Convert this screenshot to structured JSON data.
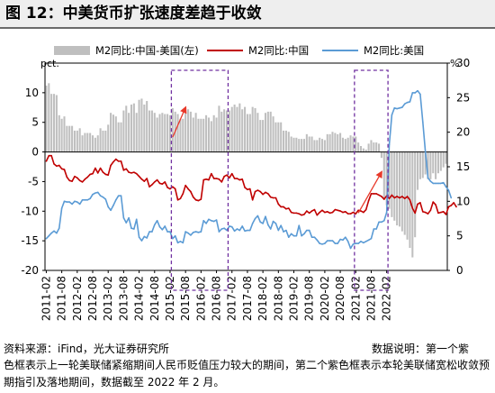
{
  "header": {
    "title": "图 12：中美货币扩张速度差趋于收敛"
  },
  "footer": {
    "source": "资料来源：iFind，光大证券研究所",
    "data_note": "数据说明：第一个紫",
    "footnote": "色框表示上一轮美联储紧缩期间人民币贬值压力较大的期间，第二个紫色框表示本轮美联储宽松收敛预期指引及落地期间，数据截至 2022 年 2 月。"
  },
  "colors": {
    "bar": "#bfbfbf",
    "china_line": "#c00000",
    "us_line": "#5b9bd5",
    "box": "#7030a0",
    "arrow": "#e8392a"
  },
  "chart_data": {
    "type": "bar",
    "title": "图 12：中美货币扩张速度差趋于收敛",
    "left_axis": {
      "unit_label": "pct.",
      "range": [
        -20,
        15
      ],
      "ticks": [
        -20,
        -15,
        -10,
        -5,
        0,
        5,
        10
      ]
    },
    "right_axis": {
      "unit_label": "%",
      "range": [
        0,
        30
      ],
      "ticks": [
        0,
        5,
        10,
        15,
        20,
        25,
        30
      ]
    },
    "x_tick_labels": [
      "2011-02",
      "2011-08",
      "2012-02",
      "2012-08",
      "2013-02",
      "2013-08",
      "2014-02",
      "2014-08",
      "2015-02",
      "2015-08",
      "2016-02",
      "2016-08",
      "2017-02",
      "2017-08",
      "2018-02",
      "2018-08",
      "2019-02",
      "2019-08",
      "2020-02",
      "2020-08",
      "2021-02",
      "2021-08",
      "2022-02"
    ],
    "legend": [
      "M2同比:中国-美国(左)",
      "M2同比:中国",
      "M2同比:美国"
    ],
    "legend_position": "top",
    "series": [
      {
        "name": "M2同比:中国-美国(左)",
        "type": "bar",
        "axis": "left",
        "values": [
          11.2,
          11.6,
          9.8,
          9.8,
          9.6,
          6.2,
          5.6,
          6.0,
          4.4,
          4.4,
          4.4,
          3.6,
          3.6,
          4.0,
          2.8,
          3.2,
          3.2,
          3.2,
          2.8,
          2.4,
          2.8,
          4.0,
          3.6,
          3.6,
          4.6,
          6.6,
          6.3,
          6.0,
          5.0,
          5.0,
          7.0,
          7.8,
          6.6,
          8.0,
          8.2,
          6.6,
          8.8,
          9.0,
          8.0,
          8.6,
          7.0,
          7.0,
          6.6,
          5.8,
          6.4,
          6.6,
          6.4,
          6.4,
          6.2,
          7.4,
          6.8,
          6.4,
          5.6,
          5.6,
          6.6,
          7.2,
          6.8,
          5.8,
          6.6,
          5.6,
          5.6,
          5.6,
          6.2,
          5.8,
          5.2,
          6.2,
          5.8,
          7.8,
          6.8,
          7.2,
          7.0,
          7.0,
          7.6,
          8.0,
          7.6,
          8.2,
          7.2,
          7.6,
          6.4,
          6.4,
          7.6,
          7.4,
          6.6,
          5.4,
          5.4,
          6.6,
          6.8,
          6.8,
          6.0,
          5.0,
          5.0,
          5.0,
          3.6,
          3.6,
          3.4,
          2.6,
          2.4,
          2.4,
          2.2,
          2.2,
          2.2,
          3.0,
          2.6,
          2.6,
          2.0,
          2.0,
          2.4,
          2.2,
          2.0,
          3.0,
          3.0,
          3.4,
          3.2,
          3.0,
          3.2,
          2.4,
          2.2,
          2.4,
          2.8,
          2.6,
          2.6,
          1.6,
          1.0,
          0.6,
          0.4,
          1.4,
          2.0,
          1.6,
          1.6,
          1.4,
          -1.0,
          -8.0,
          -9.0,
          -9.6,
          -11.0,
          -11.6,
          -12.4,
          -12.6,
          -13.4,
          -14.0,
          -14.8,
          -16.2,
          -17.8,
          -14.4,
          -6.4,
          -4.6,
          -4.4,
          -3.8,
          -4.6,
          -4.6,
          -3.6,
          -4.6,
          -3.6,
          -3.2,
          -2.6,
          -2.0
        ]
      },
      {
        "name": "M2同比:中国",
        "type": "line",
        "axis": "right",
        "values": [
          15.8,
          16.6,
          16.6,
          15.4,
          15.1,
          15.2,
          14.7,
          14.6,
          13.5,
          13.0,
          12.9,
          13.6,
          13.4,
          13.0,
          12.8,
          13.2,
          13.5,
          13.9,
          14.0,
          14.8,
          14.1,
          14.8,
          14.2,
          13.9,
          13.8,
          15.2,
          15.7,
          16.1,
          15.8,
          15.8,
          14.5,
          14.7,
          14.2,
          14.1,
          14.2,
          14.0,
          13.6,
          13.2,
          12.9,
          13.3,
          12.1,
          12.4,
          12.8,
          13.1,
          12.6,
          12.5,
          12.8,
          12.0,
          11.8,
          12.1,
          11.8,
          10.2,
          10.4,
          11.1,
          12.3,
          11.8,
          11.4,
          10.6,
          10.2,
          10.1,
          10.3,
          13.1,
          13.2,
          13.1,
          14.0,
          13.3,
          13.3,
          13.2,
          12.8,
          13.6,
          13.8,
          13.4,
          14.0,
          13.3,
          13.3,
          13.1,
          13.2,
          12.0,
          11.7,
          11.8,
          10.2,
          11.4,
          11.6,
          11.4,
          11.0,
          11.3,
          11.1,
          10.6,
          10.5,
          10.5,
          9.6,
          9.2,
          9.2,
          8.9,
          9.0,
          8.4,
          8.3,
          8.3,
          8.2,
          8.0,
          8.1,
          8.6,
          8.3,
          8.6,
          8.8,
          8.0,
          8.4,
          8.7,
          8.4,
          8.5,
          8.3,
          8.4,
          8.8,
          8.7,
          8.6,
          8.4,
          8.5,
          8.2,
          8.2,
          8.4,
          8.2,
          8.7,
          8.6,
          8.4,
          8.8,
          10.1,
          11.1,
          11.1,
          11.1,
          10.9,
          10.7,
          10.3,
          10.8,
          10.4,
          10.9,
          10.5,
          10.7,
          10.5,
          10.7,
          10.4,
          10.7,
          10.2,
          9.0,
          8.3,
          9.6,
          9.8,
          8.5,
          8.4,
          8.2,
          8.7,
          9.9,
          9.5,
          8.3,
          8.4,
          8.5,
          8.1,
          9.2,
          9.4,
          9.8,
          9.2
        ]
      },
      {
        "name": "M2同比:美国",
        "type": "line",
        "axis": "right",
        "values": [
          4.6,
          5.0,
          5.4,
          5.7,
          5.4,
          6.1,
          9.0,
          10.0,
          9.9,
          9.9,
          9.6,
          10.0,
          9.9,
          9.6,
          10.2,
          10.2,
          10.2,
          10.4,
          11.0,
          11.2,
          11.3,
          10.8,
          10.6,
          10.3,
          9.2,
          8.7,
          9.4,
          10.2,
          10.8,
          10.8,
          7.6,
          6.9,
          7.6,
          6.1,
          6.0,
          7.4,
          4.8,
          4.3,
          4.9,
          4.7,
          5.6,
          5.6,
          6.6,
          7.2,
          6.3,
          5.9,
          6.4,
          5.6,
          5.6,
          4.6,
          5.0,
          4.0,
          4.2,
          4.0,
          5.6,
          5.4,
          5.1,
          5.5,
          5.6,
          5.5,
          5.6,
          7.2,
          6.8,
          7.4,
          7.2,
          7.1,
          7.3,
          5.6,
          6.0,
          6.1,
          5.8,
          6.4,
          6.3,
          5.7,
          6.0,
          5.8,
          6.4,
          5.7,
          5.8,
          5.8,
          6.8,
          7.5,
          7.9,
          7.0,
          6.8,
          7.8,
          6.6,
          6.0,
          7.1,
          6.8,
          5.8,
          6.5,
          5.6,
          5.8,
          4.8,
          5.3,
          5.0,
          5.0,
          6.5,
          5.0,
          5.3,
          5.8,
          5.8,
          4.8,
          4.8,
          4.4,
          3.9,
          3.8,
          3.9,
          4.3,
          4.3,
          4.3,
          3.9,
          3.9,
          4.5,
          4.4,
          4.8,
          4.2,
          3.2,
          3.8,
          3.9,
          3.9,
          4.2,
          4.0,
          4.2,
          4.4,
          4.6,
          6.0,
          6.0,
          7.0,
          7.0,
          7.2,
          8.4,
          18.2,
          22.5,
          23.5,
          23.4,
          23.5,
          23.6,
          24.1,
          24.3,
          24.4,
          25.7,
          25.7,
          26.0,
          25.5,
          21.5,
          17.2,
          13.4,
          12.9,
          12.6,
          12.6,
          12.6,
          12.6,
          12.7,
          12.1,
          11.6,
          10.5
        ]
      }
    ],
    "highlight_boxes": [
      {
        "label": "上一轮美联储紧缩期间人民币贬值压力较大的期间",
        "x_range": [
          "2015-03",
          "2016-12"
        ]
      },
      {
        "label": "本轮美联储宽松收敛预期指引及落地期间",
        "x_range": [
          "2021-02",
          "2022-02"
        ]
      }
    ],
    "arrows": [
      {
        "from": [
          "2015-03",
          2.5
        ],
        "to": [
          "2015-08",
          7.5
        ],
        "axis": "left"
      },
      {
        "from": [
          "2021-03",
          -10.3
        ],
        "to": [
          "2021-12",
          -3.4
        ],
        "axis": "left"
      }
    ]
  }
}
